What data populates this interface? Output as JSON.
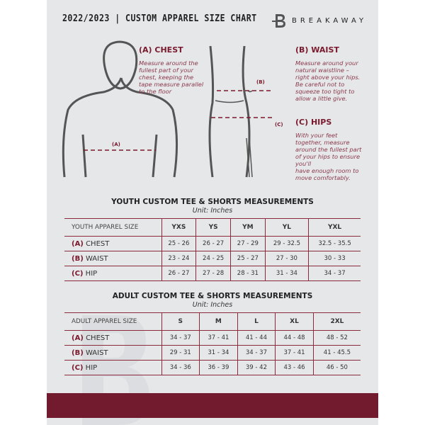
{
  "header": {
    "title": "2022/2023  |  CUSTOM APPAREL SIZE CHART",
    "brand": "BREAKAWAY",
    "logo_letter": "B"
  },
  "guide": {
    "chest": {
      "title": "(A) CHEST",
      "text": [
        "Measure around the",
        "fullest part of your",
        "chest, keeping the",
        "tape measure parallel",
        "to the floor"
      ],
      "marker": "(A)"
    },
    "waist": {
      "title": "(B) WAIST",
      "text": [
        "Measure around your",
        "natural waistline –",
        "right above your hips.",
        "Be careful not to",
        "squeeze too tight to",
        "allow a little give."
      ],
      "marker": "(B)"
    },
    "hips": {
      "title": "(C) HIPS",
      "text": [
        "With your feet",
        "together, measure",
        "around the fullest part",
        "of your hips to ensure",
        "you'll",
        "have enough room to",
        "move comfortably."
      ],
      "marker": "(C)"
    }
  },
  "youth": {
    "title": "YOUTH CUSTOM TEE & SHORTS MEASUREMENTS",
    "unit": "Unit: Inches",
    "header": "YOUTH APPAREL SIZE",
    "sizes": [
      "YXS",
      "YS",
      "YM",
      "YL",
      "YXL"
    ],
    "rows": [
      {
        "letter": "(A)",
        "label": "CHEST",
        "values": [
          "25 - 26",
          "26 - 27",
          "27 - 29",
          "29 - 32.5",
          "32.5 - 35.5"
        ]
      },
      {
        "letter": "(B)",
        "label": "WAIST",
        "values": [
          "23 - 24",
          "24 - 25",
          "25 - 27",
          "27 - 30",
          "30 - 33"
        ]
      },
      {
        "letter": "(C)",
        "label": "HIP",
        "values": [
          "26 - 27",
          "27 - 28",
          "28 - 31",
          "31 - 34",
          "34 - 37"
        ]
      }
    ]
  },
  "adult": {
    "title": "ADULT CUSTOM TEE & SHORTS MEASUREMENTS",
    "unit": "Unit: Inches",
    "header": "ADULT APPAREL SIZE",
    "sizes": [
      "S",
      "M",
      "L",
      "XL",
      "2XL"
    ],
    "rows": [
      {
        "letter": "(A)",
        "label": "CHEST",
        "values": [
          "34 - 37",
          "37 - 41",
          "41 - 44",
          "44 - 48",
          "48 - 52"
        ]
      },
      {
        "letter": "(B)",
        "label": "WAIST",
        "values": [
          "29 - 31",
          "31 - 34",
          "34 - 37",
          "37 - 41",
          "41 - 45.5"
        ]
      },
      {
        "letter": "(C)",
        "label": "HIP",
        "values": [
          "34 - 36",
          "36 - 39",
          "39 - 42",
          "43 - 46",
          "46 - 50"
        ]
      }
    ]
  },
  "colors": {
    "accent": "#721b2f",
    "panel": "#e6e7e9",
    "text": "#222222"
  }
}
